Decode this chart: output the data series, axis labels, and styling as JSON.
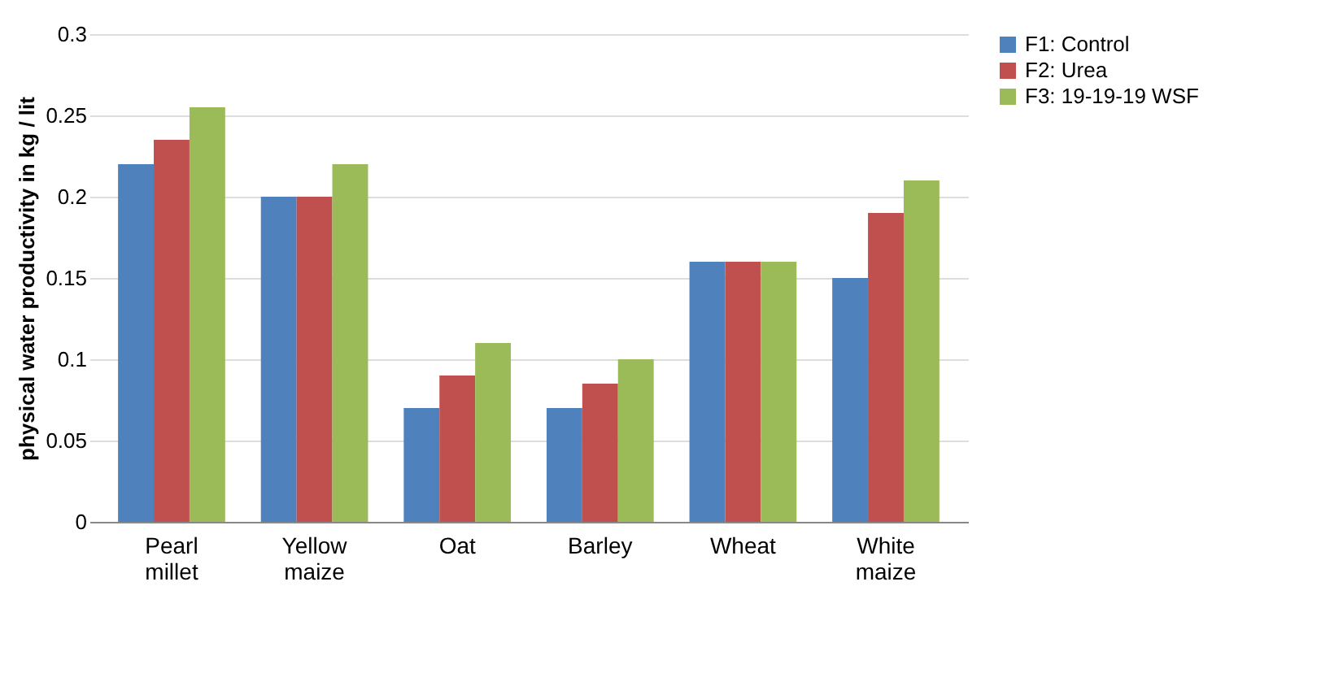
{
  "chart_data": {
    "type": "bar",
    "ylabel": "physical water productivity in kg / lit",
    "categories": [
      "Pearl millet",
      "Yellow maize",
      "Oat",
      "Barley",
      "Wheat",
      "White maize"
    ],
    "series": [
      {
        "name": "F1: Control",
        "color": "#4f81bd",
        "values": [
          0.22,
          0.2,
          0.07,
          0.07,
          0.16,
          0.15
        ]
      },
      {
        "name": "F2: Urea",
        "color": "#c0504d",
        "values": [
          0.235,
          0.2,
          0.09,
          0.085,
          0.16,
          0.19
        ]
      },
      {
        "name": "F3: 19-19-19 WSF",
        "color": "#9bbb59",
        "values": [
          0.255,
          0.22,
          0.11,
          0.1,
          0.16,
          0.21
        ]
      }
    ],
    "ylim": [
      0,
      0.3
    ],
    "yticks": [
      0,
      0.05,
      0.1,
      0.15,
      0.2,
      0.25,
      0.3
    ],
    "grid": "y",
    "legend": "right"
  }
}
